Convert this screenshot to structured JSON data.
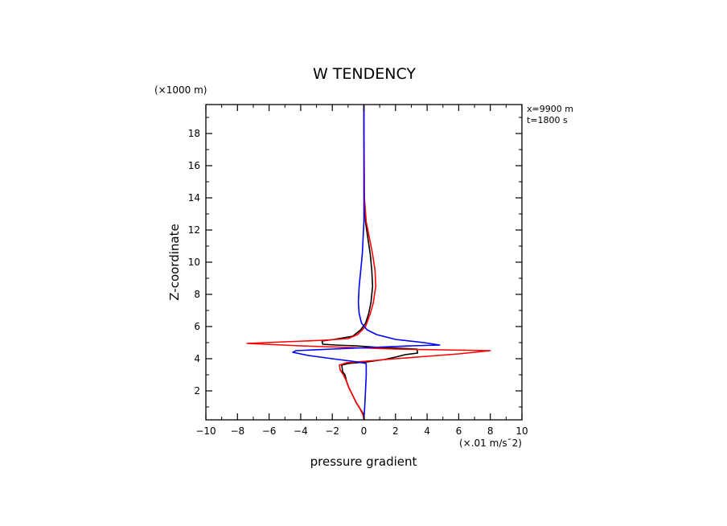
{
  "chart_data": {
    "type": "line",
    "title": "W TENDENCY",
    "xlabel": "pressure gradient",
    "x_unit": "(×.01 m/s¯2)",
    "ylabel": "Z-coordinate",
    "y_unit": "(×1000 m)",
    "annotations": [
      "x=9900 m",
      "t=1800 s"
    ],
    "xlim": [
      -10,
      10
    ],
    "ylim": [
      0.2,
      19.8
    ],
    "x_ticks": [
      -10,
      -8,
      -6,
      -4,
      -2,
      0,
      2,
      4,
      6,
      8,
      10
    ],
    "x_tick_labels": [
      "−10",
      "−8",
      "−6",
      "−4",
      "−2",
      "0",
      "2",
      "4",
      "6",
      "8",
      "10"
    ],
    "y_ticks": [
      2,
      4,
      6,
      8,
      10,
      12,
      14,
      16,
      18
    ],
    "y_tick_labels": [
      "2",
      "4",
      "6",
      "8",
      "10",
      "12",
      "14",
      "16",
      "18"
    ],
    "grid": false,
    "series": [
      {
        "color": "#000000",
        "points": [
          [
            0.0,
            0.2
          ],
          [
            -0.05,
            0.6
          ],
          [
            -0.25,
            0.9
          ],
          [
            -0.45,
            1.2
          ],
          [
            -0.6,
            1.5
          ],
          [
            -0.8,
            1.9
          ],
          [
            -0.95,
            2.2
          ],
          [
            -1.1,
            2.6
          ],
          [
            -1.2,
            3.0
          ],
          [
            -1.35,
            3.2
          ],
          [
            -1.4,
            3.6
          ],
          [
            -1.0,
            3.7
          ],
          [
            0.2,
            3.8
          ],
          [
            1.3,
            3.95
          ],
          [
            2.0,
            4.1
          ],
          [
            2.6,
            4.25
          ],
          [
            3.4,
            4.35
          ],
          [
            3.35,
            4.6
          ],
          [
            1.0,
            4.7
          ],
          [
            -0.5,
            4.8
          ],
          [
            -1.8,
            4.85
          ],
          [
            -2.6,
            4.9
          ],
          [
            -2.65,
            5.1
          ],
          [
            -1.9,
            5.2
          ],
          [
            -0.7,
            5.4
          ],
          [
            -0.2,
            5.8
          ],
          [
            0.1,
            6.2
          ],
          [
            0.3,
            6.8
          ],
          [
            0.45,
            7.5
          ],
          [
            0.55,
            8.5
          ],
          [
            0.5,
            9.5
          ],
          [
            0.4,
            10.5
          ],
          [
            0.25,
            11.5
          ],
          [
            0.1,
            12.5
          ],
          [
            0.02,
            14
          ],
          [
            0.0,
            19.8
          ]
        ]
      },
      {
        "color": "#ff0000",
        "points": [
          [
            0.05,
            0.2
          ],
          [
            -0.1,
            0.6
          ],
          [
            -0.3,
            1.0
          ],
          [
            -0.5,
            1.3
          ],
          [
            -0.65,
            1.6
          ],
          [
            -0.85,
            2.0
          ],
          [
            -1.0,
            2.3
          ],
          [
            -1.15,
            2.7
          ],
          [
            -1.3,
            3.0
          ],
          [
            -1.5,
            3.3
          ],
          [
            -1.55,
            3.6
          ],
          [
            -1.1,
            3.75
          ],
          [
            0.2,
            3.85
          ],
          [
            2.0,
            4.0
          ],
          [
            4.0,
            4.15
          ],
          [
            6.0,
            4.3
          ],
          [
            8.0,
            4.5
          ],
          [
            5.0,
            4.55
          ],
          [
            2.0,
            4.6
          ],
          [
            -1.0,
            4.7
          ],
          [
            -4.0,
            4.8
          ],
          [
            -7.4,
            4.95
          ],
          [
            -5.0,
            5.05
          ],
          [
            -2.5,
            5.15
          ],
          [
            -1.0,
            5.25
          ],
          [
            -0.4,
            5.5
          ],
          [
            0.1,
            6.0
          ],
          [
            0.4,
            6.8
          ],
          [
            0.6,
            7.5
          ],
          [
            0.75,
            8.5
          ],
          [
            0.7,
            9.5
          ],
          [
            0.55,
            10.5
          ],
          [
            0.35,
            11.5
          ],
          [
            0.15,
            12.5
          ],
          [
            0.03,
            14
          ],
          [
            0.0,
            19.8
          ]
        ]
      },
      {
        "color": "#0000ff",
        "points": [
          [
            0.0,
            0.2
          ],
          [
            0.05,
            1.0
          ],
          [
            0.1,
            2.0
          ],
          [
            0.15,
            3.0
          ],
          [
            0.15,
            3.7
          ],
          [
            -0.4,
            3.8
          ],
          [
            -2.0,
            4.0
          ],
          [
            -3.5,
            4.2
          ],
          [
            -4.5,
            4.4
          ],
          [
            -4.3,
            4.5
          ],
          [
            -2.0,
            4.6
          ],
          [
            0.5,
            4.7
          ],
          [
            3.0,
            4.8
          ],
          [
            4.8,
            4.85
          ],
          [
            3.8,
            5.0
          ],
          [
            2.0,
            5.2
          ],
          [
            0.8,
            5.5
          ],
          [
            0.2,
            5.8
          ],
          [
            -0.15,
            6.2
          ],
          [
            -0.3,
            6.8
          ],
          [
            -0.35,
            7.5
          ],
          [
            -0.3,
            8.5
          ],
          [
            -0.2,
            9.5
          ],
          [
            -0.1,
            10.5
          ],
          [
            -0.05,
            11.5
          ],
          [
            0.0,
            12.5
          ],
          [
            0.0,
            19.8
          ]
        ]
      }
    ]
  }
}
